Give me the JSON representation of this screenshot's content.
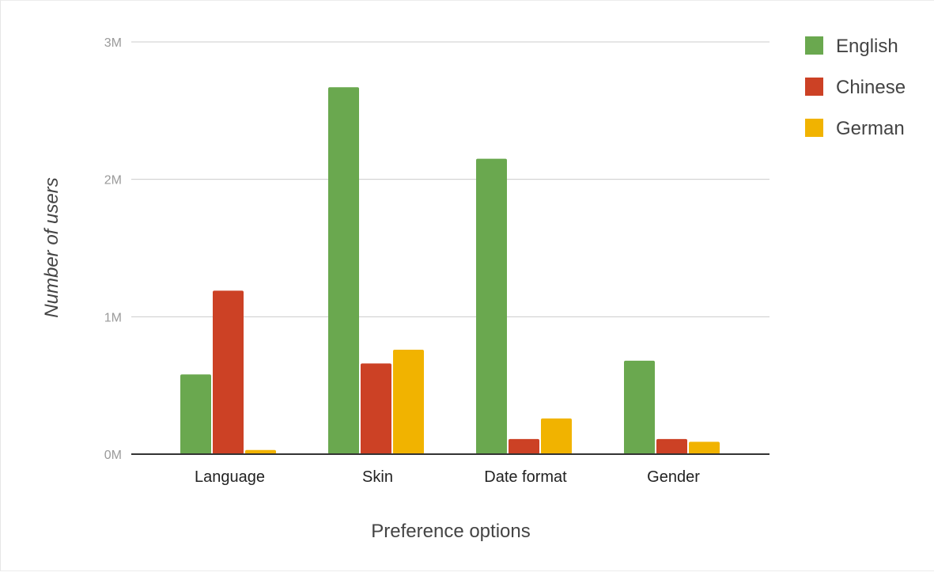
{
  "chart_data": {
    "type": "bar",
    "categories": [
      "Language",
      "Skin",
      "Date format",
      "Gender"
    ],
    "series": [
      {
        "name": "English",
        "color": "#6aa84f",
        "values": [
          580000,
          2670000,
          2150000,
          680000
        ]
      },
      {
        "name": "Chinese",
        "color": "#cc4125",
        "values": [
          1190000,
          660000,
          110000,
          110000
        ]
      },
      {
        "name": "German",
        "color": "#f1b300",
        "values": [
          30000,
          760000,
          260000,
          90000
        ]
      }
    ],
    "y_ticks": [
      {
        "value": 0,
        "label": "0M"
      },
      {
        "value": 1000000,
        "label": "1M"
      },
      {
        "value": 2000000,
        "label": "2M"
      },
      {
        "value": 3000000,
        "label": "3M"
      }
    ],
    "ylim": [
      0,
      3000000
    ],
    "xlabel": "Preference options",
    "ylabel": "Number of users",
    "grid": true,
    "legend_position": "top-right"
  }
}
